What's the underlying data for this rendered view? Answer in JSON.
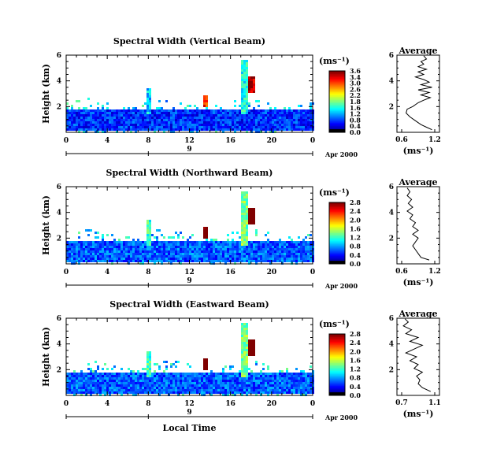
{
  "panels": [
    {
      "title": "Spectral Width (Vertical Beam)",
      "scale_ticks": [
        "3.6",
        "3.4",
        "3.0",
        "2.6",
        "2.2",
        "1.8",
        "1.6",
        "1.2",
        "0.8",
        "0.4",
        "0.0"
      ],
      "avg_ticks": [
        "0.6",
        "1.2"
      ],
      "avg_xlim": [
        0.6,
        1.2
      ],
      "avg_profile": [
        [
          1.15,
          0.2
        ],
        [
          1.05,
          0.4
        ],
        [
          0.95,
          0.6
        ],
        [
          0.85,
          0.9
        ],
        [
          0.75,
          1.2
        ],
        [
          0.68,
          1.5
        ],
        [
          0.7,
          1.8
        ],
        [
          0.8,
          2.0
        ],
        [
          0.9,
          2.3
        ],
        [
          1.0,
          2.5
        ],
        [
          1.12,
          2.7
        ],
        [
          0.95,
          2.9
        ],
        [
          1.1,
          3.1
        ],
        [
          0.9,
          3.3
        ],
        [
          1.15,
          3.5
        ],
        [
          0.95,
          3.7
        ],
        [
          1.1,
          3.9
        ],
        [
          1.0,
          4.1
        ],
        [
          0.85,
          4.3
        ],
        [
          1.0,
          4.5
        ],
        [
          0.9,
          4.7
        ],
        [
          1.05,
          4.9
        ],
        [
          0.9,
          5.1
        ],
        [
          1.0,
          5.3
        ],
        [
          0.95,
          5.5
        ],
        [
          1.05,
          5.7
        ],
        [
          1.0,
          5.95
        ]
      ]
    },
    {
      "title": "Spectral Width (Northward Beam)",
      "scale_ticks": [
        "2.8",
        "2.4",
        "2.0",
        "1.6",
        "1.2",
        "0.8",
        "0.4",
        "0.0"
      ],
      "avg_ticks": [
        "0.6",
        "1.2"
      ],
      "avg_xlim": [
        0.6,
        1.2
      ],
      "avg_profile": [
        [
          1.1,
          0.3
        ],
        [
          0.95,
          0.5
        ],
        [
          0.9,
          0.8
        ],
        [
          0.85,
          1.1
        ],
        [
          0.8,
          1.4
        ],
        [
          0.85,
          1.7
        ],
        [
          0.9,
          2.0
        ],
        [
          0.8,
          2.3
        ],
        [
          0.9,
          2.6
        ],
        [
          0.8,
          2.9
        ],
        [
          0.85,
          3.2
        ],
        [
          0.75,
          3.5
        ],
        [
          0.8,
          3.8
        ],
        [
          0.7,
          4.1
        ],
        [
          0.8,
          4.4
        ],
        [
          0.72,
          4.7
        ],
        [
          0.78,
          5.0
        ],
        [
          0.7,
          5.3
        ],
        [
          0.75,
          5.6
        ],
        [
          0.7,
          5.9
        ]
      ]
    },
    {
      "title": "Spectral Width (Eastward Beam)",
      "scale_ticks": [
        "2.8",
        "2.4",
        "2.0",
        "1.6",
        "1.2",
        "0.8",
        "0.4",
        "0.0"
      ],
      "avg_ticks": [
        "0.7",
        "1.1"
      ],
      "avg_xlim": [
        0.7,
        1.1
      ],
      "avg_profile": [
        [
          1.05,
          0.3
        ],
        [
          0.95,
          0.6
        ],
        [
          0.9,
          0.9
        ],
        [
          0.92,
          1.2
        ],
        [
          0.88,
          1.5
        ],
        [
          0.95,
          1.8
        ],
        [
          0.85,
          2.1
        ],
        [
          0.9,
          2.4
        ],
        [
          0.8,
          2.7
        ],
        [
          0.88,
          3.0
        ],
        [
          0.75,
          3.3
        ],
        [
          0.85,
          3.6
        ],
        [
          0.95,
          3.9
        ],
        [
          0.8,
          4.2
        ],
        [
          0.9,
          4.5
        ],
        [
          0.75,
          4.8
        ],
        [
          0.82,
          5.1
        ],
        [
          0.72,
          5.4
        ],
        [
          0.78,
          5.7
        ],
        [
          0.74,
          5.95
        ]
      ]
    }
  ],
  "ylabel": "Height (km)",
  "y_ticks": [
    "2",
    "4",
    "6"
  ],
  "x_ticks": [
    "0",
    "4",
    "8",
    "12",
    "16",
    "20",
    "0"
  ],
  "day_label": "9",
  "date_label": "Apr 2000",
  "unit_label": "(ms⁻¹)",
  "avg_title": "Average",
  "avg_unit": "(ms⁻¹)",
  "xlabel": "Local Time",
  "chart_data": {
    "type": "heatmap",
    "title": "Spectral Width",
    "xlabel": "Local Time",
    "ylabel": "Height (km)",
    "xlim": [
      0,
      24
    ],
    "ylim": [
      0,
      6
    ],
    "colorbar_unit": "ms⁻¹",
    "colormap": "jet",
    "series": [
      {
        "name": "Vertical Beam",
        "clim": [
          0.0,
          3.6
        ]
      },
      {
        "name": "Northward Beam",
        "clim": [
          0.0,
          2.8
        ]
      },
      {
        "name": "Eastward Beam",
        "clim": [
          0.0,
          2.8
        ]
      }
    ],
    "regions": [
      {
        "x": [
          0,
          24
        ],
        "y": [
          0.3,
          1.8
        ],
        "value": 0.6
      },
      {
        "x": [
          7.6,
          8.2
        ],
        "y": [
          1.5,
          3.5
        ],
        "value": 1.2
      },
      {
        "x": [
          13.2,
          13.6
        ],
        "y": [
          2.0,
          3.0
        ],
        "value": 3.0
      },
      {
        "x": [
          17.0,
          17.6
        ],
        "y": [
          1.5,
          5.8
        ],
        "value": 1.4
      },
      {
        "x": [
          17.6,
          18.2
        ],
        "y": [
          3.2,
          4.5
        ],
        "value": 3.4
      }
    ]
  }
}
